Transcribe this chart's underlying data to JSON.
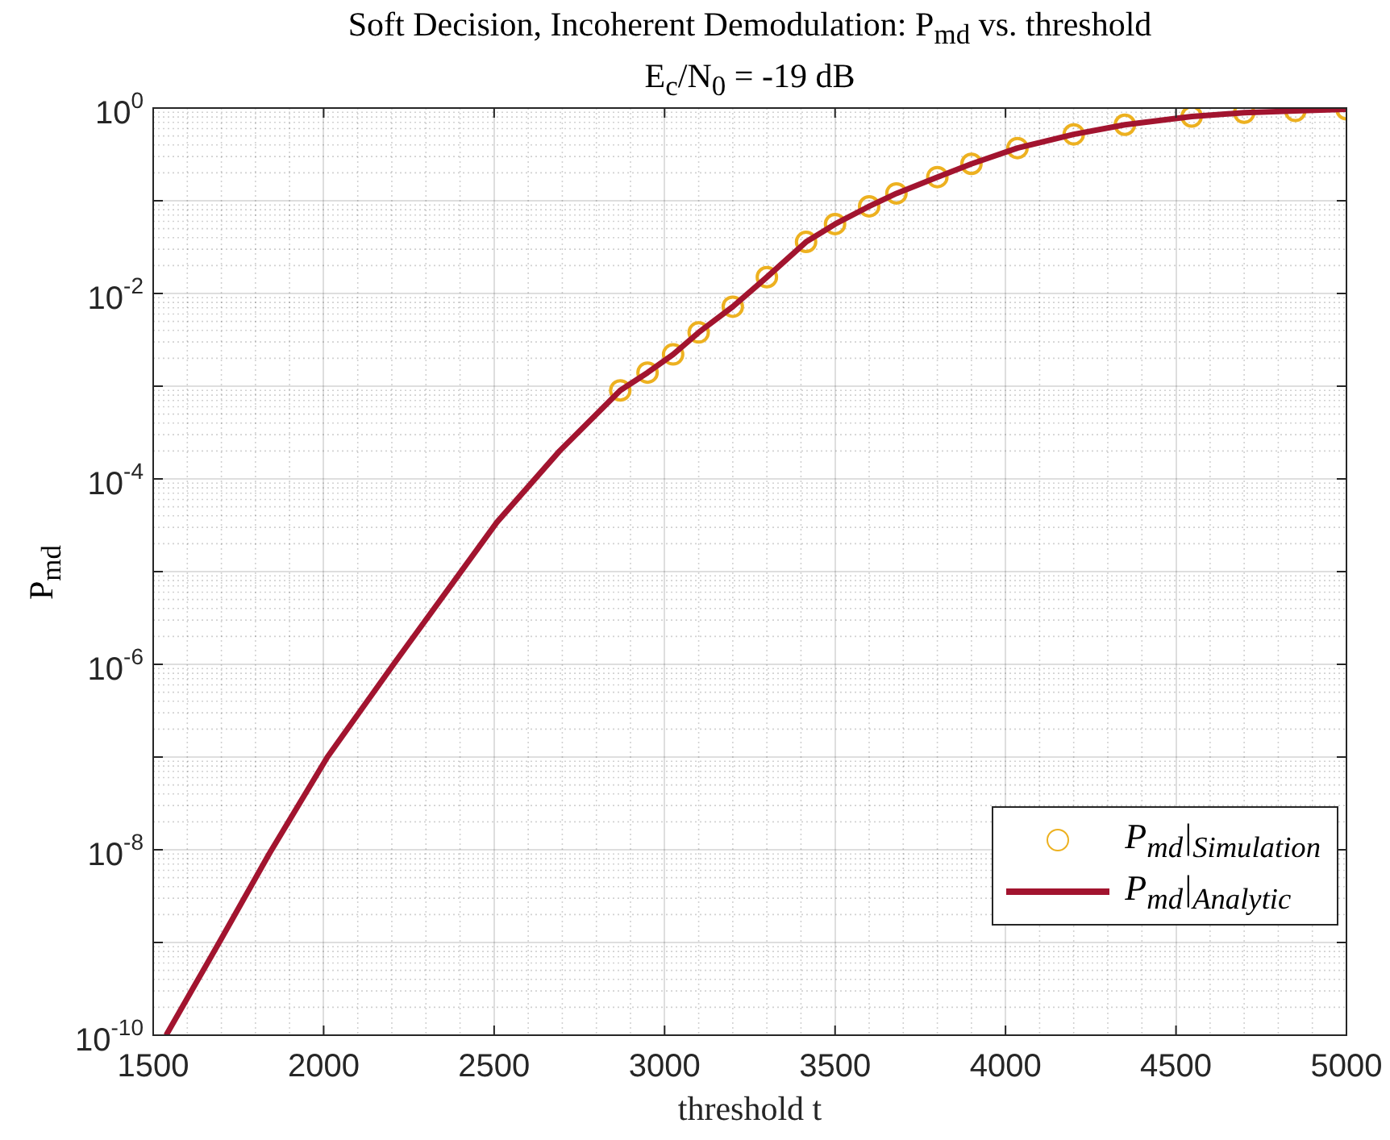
{
  "chart_data": {
    "type": "line",
    "title": "Soft Decision, Incoherent Demodulation: P$_{md}$ vs. threshold",
    "subtitle": "E$_{c}$/N$_{0}$ = -19 dB",
    "xlabel": "threshold t",
    "ylabel": "P$_{md}$",
    "xlim": [
      1500,
      5000
    ],
    "xticks": [
      1500,
      2000,
      2500,
      3000,
      3500,
      4000,
      4500,
      5000
    ],
    "ylim": [
      1e-10,
      1
    ],
    "yticks": [
      {
        "value": 1e-10,
        "label": "10$^{-10}$"
      },
      {
        "value": 1e-09,
        "label": null
      },
      {
        "value": 1e-08,
        "label": "10$^{-8}$"
      },
      {
        "value": 1e-07,
        "label": null
      },
      {
        "value": 1e-06,
        "label": "10$^{-6}$"
      },
      {
        "value": 1e-05,
        "label": null
      },
      {
        "value": 0.0001,
        "label": "10$^{-4}$"
      },
      {
        "value": 0.001,
        "label": null
      },
      {
        "value": 0.01,
        "label": "10$^{-2}$"
      },
      {
        "value": 0.1,
        "label": null
      },
      {
        "value": 1,
        "label": "10$^{0}$"
      }
    ],
    "log": "y",
    "grid": true,
    "legend": "bottom right",
    "series": [
      {
        "name": "P$_{md}$|$_{Simulation}$",
        "type": "scatter",
        "marker": "circle",
        "color": "#edb120",
        "x": [
          2870,
          2950,
          3025,
          3100,
          3200,
          3300,
          3415,
          3500,
          3600,
          3680,
          3800,
          3900,
          4035,
          4200,
          4350,
          4546,
          4700,
          4850,
          5000
        ],
        "values": [
          0.0009,
          0.0014,
          0.0022,
          0.0038,
          0.0072,
          0.015,
          0.036,
          0.056,
          0.087,
          0.12,
          0.18,
          0.25,
          0.37,
          0.52,
          0.66,
          0.81,
          0.89,
          0.93,
          0.97
        ]
      },
      {
        "name": "P$_{md}$|$_{Analytic}$",
        "type": "line",
        "marker": "none",
        "line_style": "solid",
        "color": "#a2142f",
        "x": [
          1538,
          1700,
          1840,
          2011,
          2205,
          2508,
          2692,
          2870,
          2950,
          3025,
          3100,
          3200,
          3300,
          3415,
          3500,
          3600,
          3680,
          3800,
          3900,
          4035,
          4200,
          4350,
          4546,
          4700,
          4850,
          5000
        ],
        "values": [
          1e-10,
          1.1e-09,
          9e-09,
          1e-07,
          1e-06,
          3.4e-05,
          0.0002,
          0.0009,
          0.0014,
          0.0022,
          0.0038,
          0.0072,
          0.015,
          0.036,
          0.056,
          0.087,
          0.12,
          0.18,
          0.25,
          0.37,
          0.52,
          0.66,
          0.81,
          0.89,
          0.93,
          0.97
        ]
      }
    ]
  }
}
